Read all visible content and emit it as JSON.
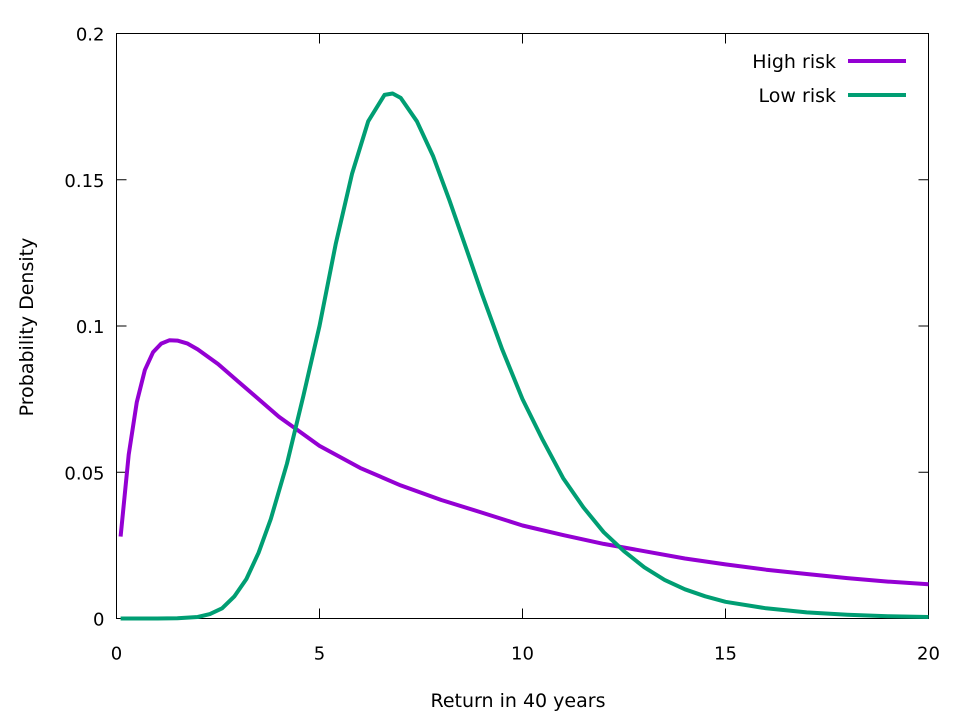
{
  "chart_data": {
    "type": "line",
    "title": "",
    "xlabel": "Return in 40 years",
    "ylabel": "Probability Density",
    "xlim": [
      0,
      20
    ],
    "ylim": [
      0,
      0.2
    ],
    "xticks": [
      0,
      5,
      10,
      15,
      20
    ],
    "xtick_labels": [
      "0",
      "5",
      "10",
      "15",
      "20"
    ],
    "yticks": [
      0,
      0.05,
      0.1,
      0.15,
      0.2
    ],
    "ytick_labels": [
      "0",
      "0.05",
      "0.1",
      "0.15",
      "0.2"
    ],
    "grid": false,
    "legend_position": "top-right",
    "series": [
      {
        "name": "High risk",
        "color": "#9400d3",
        "x": [
          0.1,
          0.3,
          0.5,
          0.7,
          0.9,
          1.1,
          1.3,
          1.5,
          1.75,
          2.0,
          2.5,
          3.0,
          3.5,
          4.0,
          4.5,
          5.0,
          6.0,
          7.0,
          8.0,
          9.0,
          10.0,
          11.0,
          12.0,
          13.0,
          14.0,
          15.0,
          16.0,
          17.0,
          18.0,
          19.0,
          20.0
        ],
        "y": [
          0.028,
          0.056,
          0.074,
          0.085,
          0.091,
          0.094,
          0.0951,
          0.095,
          0.094,
          0.092,
          0.087,
          0.081,
          0.075,
          0.069,
          0.064,
          0.059,
          0.0515,
          0.0455,
          0.0405,
          0.0362,
          0.0318,
          0.0285,
          0.0255,
          0.023,
          0.0205,
          0.0185,
          0.0167,
          0.0152,
          0.0138,
          0.0126,
          0.0117
        ]
      },
      {
        "name": "Low risk",
        "color": "#009e73",
        "x": [
          0.1,
          1.0,
          1.5,
          2.0,
          2.3,
          2.6,
          2.9,
          3.2,
          3.5,
          3.8,
          4.2,
          4.6,
          5.0,
          5.4,
          5.8,
          6.2,
          6.6,
          6.8,
          7.0,
          7.4,
          7.8,
          8.2,
          8.6,
          9.0,
          9.5,
          10.0,
          10.5,
          11.0,
          11.5,
          12.0,
          12.5,
          13.0,
          13.5,
          14.0,
          14.5,
          15.0,
          16.0,
          17.0,
          18.0,
          19.0,
          20.0
        ],
        "y": [
          0.0,
          0.0,
          0.0001,
          0.0005,
          0.0015,
          0.0035,
          0.0075,
          0.0135,
          0.0225,
          0.034,
          0.053,
          0.076,
          0.1,
          0.128,
          0.152,
          0.17,
          0.179,
          0.1795,
          0.178,
          0.17,
          0.158,
          0.143,
          0.127,
          0.111,
          0.092,
          0.075,
          0.061,
          0.048,
          0.038,
          0.0295,
          0.023,
          0.0175,
          0.0132,
          0.01,
          0.0076,
          0.0057,
          0.0035,
          0.0021,
          0.0013,
          0.0008,
          0.0005
        ]
      }
    ]
  }
}
